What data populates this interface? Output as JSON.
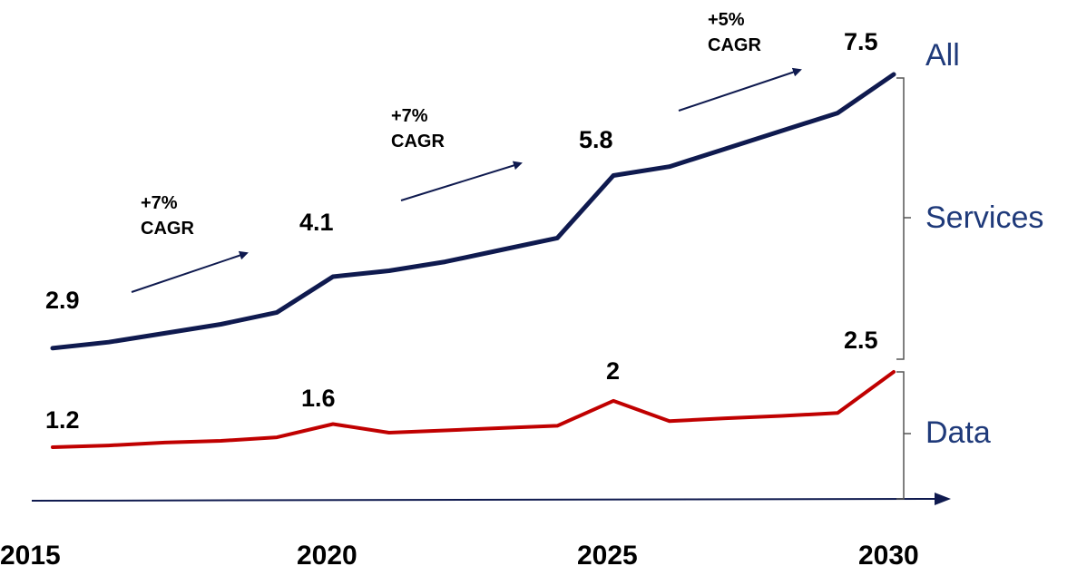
{
  "chart_data": {
    "type": "line",
    "x": [
      2015,
      2016,
      2017,
      2018,
      2019,
      2020,
      2021,
      2022,
      2023,
      2024,
      2025,
      2026,
      2027,
      2028,
      2029,
      2030
    ],
    "xlim": [
      2015,
      2030
    ],
    "x_ticks": [
      "2015",
      "2020",
      "2025",
      "2030"
    ],
    "ylim": [
      0,
      8
    ],
    "grid": false,
    "legend": "none",
    "series": [
      {
        "key": "all",
        "color": "#0f1a4f",
        "values": [
          2.9,
          3.0,
          3.15,
          3.3,
          3.5,
          4.1,
          4.2,
          4.35,
          4.55,
          4.75,
          5.8,
          5.95,
          6.25,
          6.55,
          6.85,
          7.5
        ]
      },
      {
        "key": "data",
        "color": "#c00000",
        "values": [
          1.2,
          1.23,
          1.28,
          1.31,
          1.37,
          1.6,
          1.45,
          1.49,
          1.53,
          1.57,
          2.0,
          1.65,
          1.7,
          1.74,
          1.79,
          2.5
        ]
      }
    ],
    "point_labels": [
      {
        "series": "all",
        "x": 2015,
        "text": "2.9"
      },
      {
        "series": "all",
        "x": 2020,
        "text": "4.1"
      },
      {
        "series": "all",
        "x": 2025,
        "text": "5.8"
      },
      {
        "series": "all",
        "x": 2030,
        "text": "7.5"
      },
      {
        "series": "data",
        "x": 2015,
        "text": "1.2"
      },
      {
        "series": "data",
        "x": 2020,
        "text": "1.6"
      },
      {
        "series": "data",
        "x": 2025,
        "text": "2"
      },
      {
        "series": "data",
        "x": 2030,
        "text": "2.5"
      }
    ],
    "cagr_annotations": [
      {
        "from": 2015,
        "to": 2020,
        "line1": "+7%",
        "line2": "CAGR"
      },
      {
        "from": 2020,
        "to": 2025,
        "line1": "+7%",
        "line2": "CAGR"
      },
      {
        "from": 2025,
        "to": 2030,
        "line1": "+5%",
        "line2": "CAGR"
      }
    ],
    "segment_labels": {
      "all": "All",
      "services": "Services",
      "data": "Data"
    }
  }
}
